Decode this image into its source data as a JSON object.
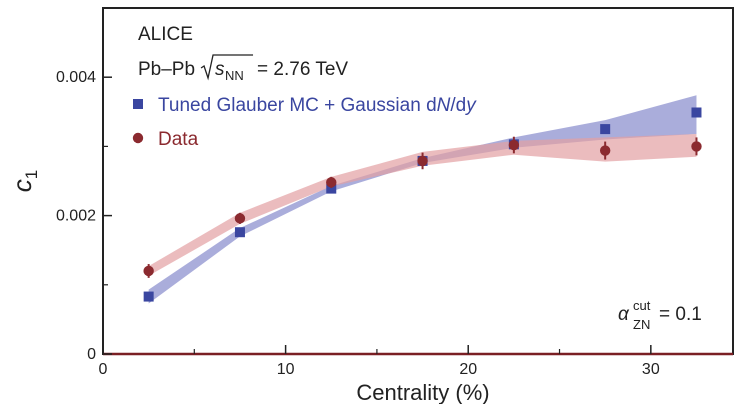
{
  "chart_data": {
    "type": "scatter",
    "experiment": "ALICE",
    "system": {
      "prefix": "Pb–Pb",
      "sqrt_sub": "NN",
      "symbol": "s",
      "suffix": "= 2.76 TeV"
    },
    "annotation": {
      "symbol": "α",
      "sup": "cut",
      "sub": "ZN",
      "suffix": "= 0.1"
    },
    "xlabel": "Centrality (%)",
    "ylabel_symbol": "c",
    "ylabel_sub": "1",
    "xlim": [
      0,
      34.5
    ],
    "ylim": [
      0,
      0.005
    ],
    "x_ticks": [
      0,
      10,
      20,
      30
    ],
    "y_ticks": [
      0,
      0.002,
      0.004
    ],
    "y_tick_labels": [
      "0",
      "0.002",
      "0.004"
    ],
    "x_tick_labels": [
      "0",
      "10",
      "20",
      "30"
    ],
    "grid": false,
    "legend_position": "top-left",
    "series": [
      {
        "name": "Tuned Glauber MC + Gaussian dN/dy",
        "name_parts": [
          "Tuned Glauber MC + Gaussian d",
          "N",
          "/d",
          "y"
        ],
        "marker": "square",
        "color": "#3a46a0",
        "band_color": "#8e92cf",
        "x": [
          2.5,
          7.5,
          12.5,
          17.5,
          22.5,
          27.5,
          32.5
        ],
        "y": [
          0.00083,
          0.00176,
          0.00239,
          0.00279,
          0.00303,
          0.00325,
          0.00349
        ],
        "band_lower": [
          0.00073,
          0.0017,
          0.00235,
          0.00276,
          0.00298,
          0.0031,
          0.00318
        ],
        "band_upper": [
          0.00093,
          0.00182,
          0.00243,
          0.00283,
          0.00313,
          0.00338,
          0.00374
        ]
      },
      {
        "name": "Data",
        "name_parts": [
          "Data"
        ],
        "marker": "circle",
        "color": "#8b2a2f",
        "band_color": "#e3a0a3",
        "x": [
          2.5,
          7.5,
          12.5,
          17.5,
          22.5,
          27.5,
          32.5
        ],
        "y": [
          0.0012,
          0.00196,
          0.00248,
          0.00279,
          0.00302,
          0.00294,
          0.003
        ],
        "err": [
          0.0001,
          8e-05,
          8e-05,
          0.00012,
          0.00012,
          0.00013,
          0.00013
        ],
        "band_lower": [
          0.00113,
          0.00188,
          0.00242,
          0.00272,
          0.00288,
          0.00278,
          0.00285
        ],
        "band_upper": [
          0.00127,
          0.00204,
          0.00256,
          0.00292,
          0.00308,
          0.00313,
          0.00318
        ]
      }
    ]
  }
}
